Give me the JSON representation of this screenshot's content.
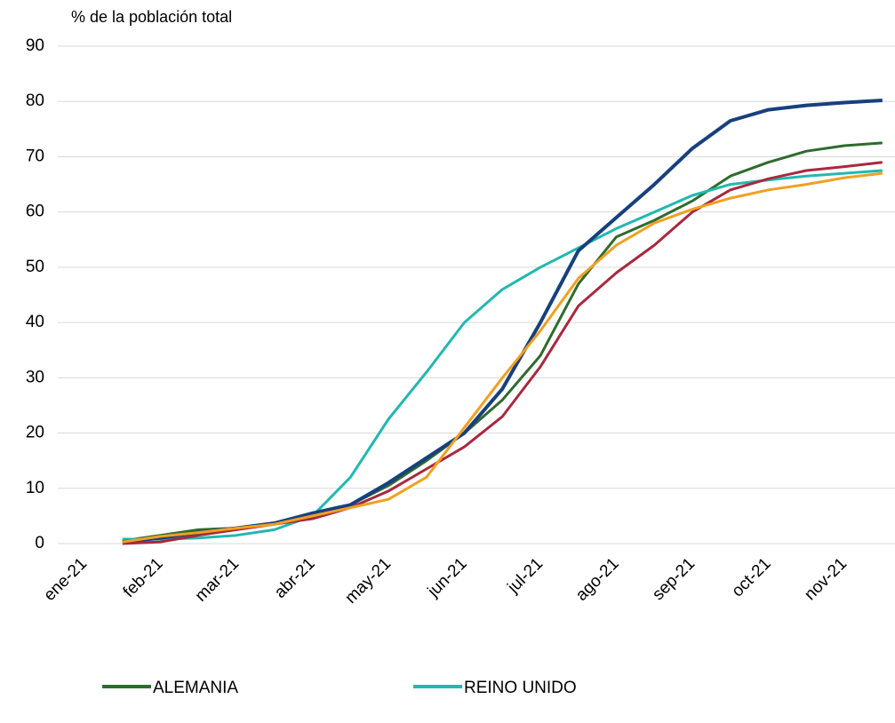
{
  "chart_data": {
    "type": "line",
    "y_title": "% de la población total",
    "categories": [
      null,
      null,
      "feb-21",
      null,
      "mar-21",
      null,
      "abr-21",
      null,
      "may-21",
      null,
      "jun-21",
      null,
      "jul-21",
      null,
      "ago-21",
      null,
      "sep-21",
      null,
      "oct-21",
      null,
      "nov-21",
      null
    ],
    "first_category": "ene-21",
    "series": [
      {
        "name": "ALEMANIA",
        "color": "#2e6b2e",
        "values": [
          null,
          0.5,
          1.5,
          2.5,
          2.8,
          3.5,
          5.5,
          7,
          10.5,
          15,
          20,
          26,
          34,
          47,
          55.5,
          58.5,
          62,
          66.5,
          69,
          71,
          72,
          72.5
        ]
      },
      {
        "name": "REINO UNIDO",
        "color": "#21b8b0",
        "values": [
          null,
          0.8,
          0.8,
          1,
          1.5,
          2.5,
          5,
          12,
          22.5,
          31,
          40,
          46,
          50,
          53.5,
          57,
          60,
          63,
          65,
          65.8,
          66.5,
          67,
          67.5
        ]
      },
      {
        "color": "#17407e",
        "values": [
          null,
          0.3,
          1,
          2,
          2.8,
          3.7,
          5.5,
          7,
          11,
          15.5,
          20,
          28,
          40,
          53,
          59,
          65,
          71.5,
          76.5,
          78.5,
          79.3,
          79.8,
          80.2
        ]
      },
      {
        "color": "#a8283f",
        "values": [
          null,
          0,
          0.3,
          1.5,
          2.5,
          3.5,
          4.5,
          6.5,
          9.5,
          13.5,
          17.5,
          23,
          32,
          43,
          49,
          54,
          60,
          64,
          66,
          67.5,
          68.2,
          69
        ]
      },
      {
        "color": "#f0a020",
        "values": [
          null,
          0.3,
          1.3,
          2,
          2.8,
          3.5,
          5,
          6.5,
          8,
          12,
          21,
          30,
          38.5,
          48,
          54,
          58,
          60.5,
          62.5,
          64,
          65,
          66.2,
          67
        ]
      }
    ],
    "ylim": [
      0,
      90
    ],
    "yticks": [
      0,
      10,
      20,
      30,
      40,
      50,
      60,
      70,
      80,
      90
    ],
    "grid": true
  }
}
